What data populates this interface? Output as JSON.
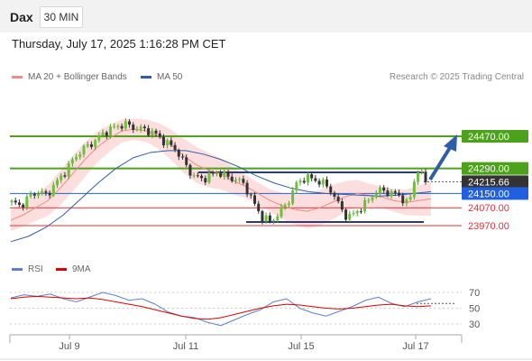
{
  "header": {
    "instrument": "Dax",
    "timeframe": "30 MIN"
  },
  "datetime": "Thursday, July 17, 2025 1:16:28 PM CET",
  "legend": {
    "ma20": {
      "label": "MA 20 + Bollinger Bands",
      "color": "#f28b82"
    },
    "ma50": {
      "label": "MA 50",
      "color": "#2e5ea8"
    }
  },
  "research": "Research © 2025 Trading Central",
  "rsi_legend": {
    "rsi": {
      "label": "RSI",
      "color": "#5b7fd1"
    },
    "ma9": {
      "label": "9MA",
      "color": "#e00000"
    }
  },
  "chart_data": {
    "type": "line",
    "x": [
      "Jul 9",
      "Jul 11",
      "Jul 15",
      "Jul 17"
    ],
    "levels": [
      {
        "label": "24470.00",
        "value": 24470,
        "kind": "resistance",
        "color": "#4ca21b"
      },
      {
        "label": "24290.00",
        "value": 24290,
        "kind": "resistance",
        "color": "#4ca21b"
      },
      {
        "label": "24215.66",
        "value": 24215.66,
        "kind": "last",
        "color": "#222222"
      },
      {
        "label": "24150.00",
        "value": 24150,
        "kind": "pivot",
        "color": "#1f5fe0"
      },
      {
        "label": "24070.00",
        "value": 24070,
        "kind": "support",
        "color": "#e0313a"
      },
      {
        "label": "23970.00",
        "value": 23970,
        "kind": "support",
        "color": "#e0313a"
      }
    ],
    "price_range": [
      23800,
      24600
    ],
    "close_path": [
      24100,
      24080,
      24130,
      24160,
      24140,
      24200,
      24260,
      24330,
      24390,
      24420,
      24460,
      24500,
      24520,
      24540,
      24520,
      24510,
      24500,
      24470,
      24430,
      24400,
      24320,
      24250,
      24230,
      24250,
      24270,
      24240,
      24230,
      24200,
      24100,
      24020,
      23990,
      24040,
      24100,
      24200,
      24240,
      24230,
      24210,
      24170,
      24080,
      24010,
      24050,
      24090,
      24150,
      24170,
      24150,
      24140,
      24080,
      24290,
      24215.66
    ],
    "ma20_path": [
      24000,
      24030,
      24070,
      24110,
      24180,
      24260,
      24340,
      24410,
      24460,
      24500,
      24510,
      24500,
      24470,
      24420,
      24360,
      24310,
      24280,
      24260,
      24220,
      24190,
      24150,
      24110,
      24080,
      24060,
      24050,
      24070,
      24100,
      24130,
      24150,
      24140,
      24130,
      24110,
      24100,
      24110,
      24120
    ],
    "ma50_path": [
      23880,
      23910,
      23960,
      24030,
      24120,
      24210,
      24290,
      24350,
      24380,
      24390,
      24390,
      24370,
      24340,
      24300,
      24250,
      24210,
      24180,
      24160,
      24150,
      24145,
      24140,
      24135,
      24140,
      24150,
      24160
    ],
    "rsi": {
      "ticks": [
        70,
        50,
        30
      ],
      "rsi_path": [
        63,
        67,
        65,
        68,
        62,
        58,
        64,
        70,
        66,
        60,
        62,
        55,
        45,
        40,
        38,
        32,
        28,
        35,
        42,
        48,
        58,
        62,
        50,
        44,
        40,
        46,
        52,
        60,
        64,
        56,
        52,
        58,
        62
      ],
      "ma9_path": [
        62,
        64,
        65,
        64,
        63,
        62,
        63,
        61,
        58,
        55,
        52,
        48,
        44,
        40,
        37,
        36,
        38,
        42,
        46,
        50,
        53,
        55,
        54,
        52,
        50,
        49,
        50,
        52,
        54,
        55,
        53,
        52,
        53
      ]
    }
  }
}
